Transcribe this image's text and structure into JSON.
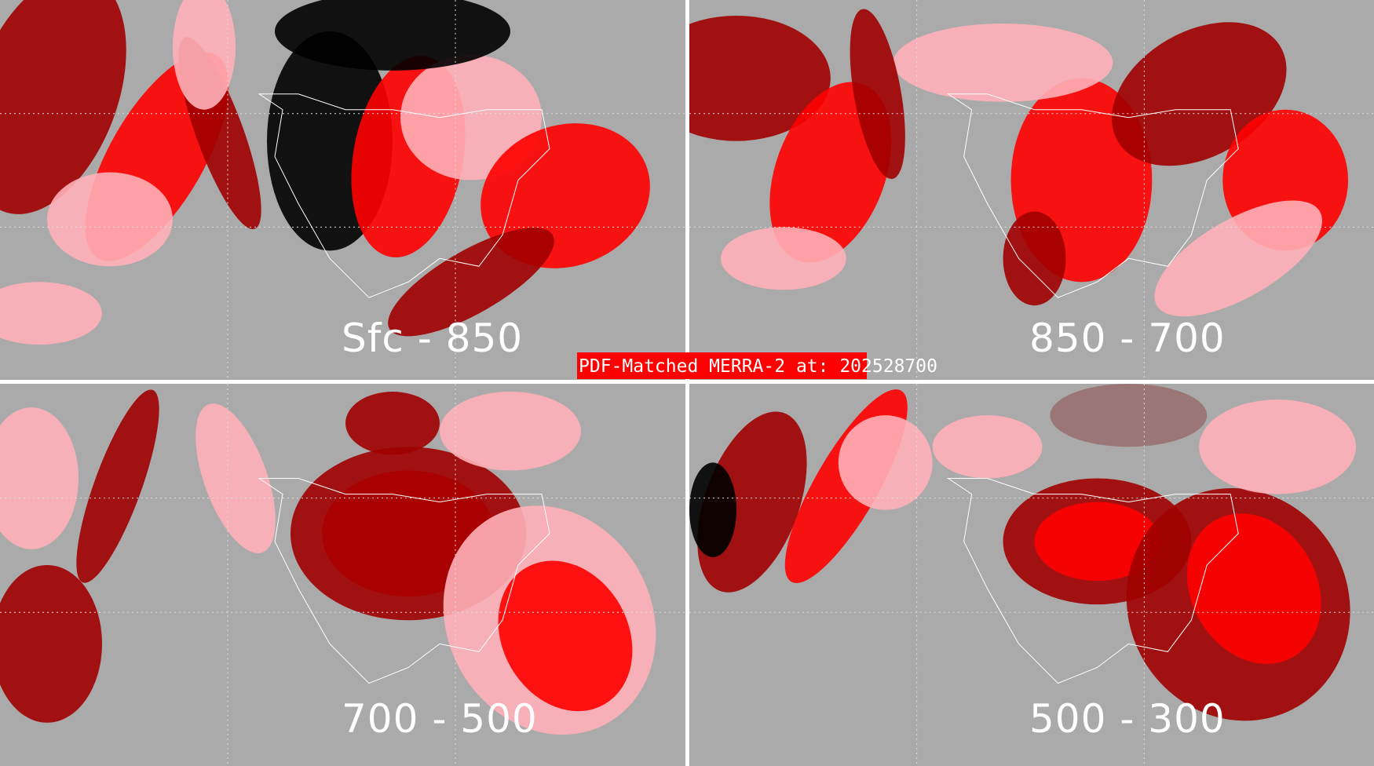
{
  "title": "PDF-Matched MERRA-2 at: 202528700",
  "panels": [
    {
      "label": "Sfc - 850"
    },
    {
      "label": "850 - 700"
    },
    {
      "label": "700 - 500"
    },
    {
      "label": "500 - 300"
    }
  ],
  "colors": {
    "background": "#aaaaaa",
    "dark_red": "#a00000",
    "red": "#ff0000",
    "pink": "#ffb0b8",
    "brownish_gray": "#987070",
    "black": "#000000",
    "coastlines": "#ffffff"
  }
}
